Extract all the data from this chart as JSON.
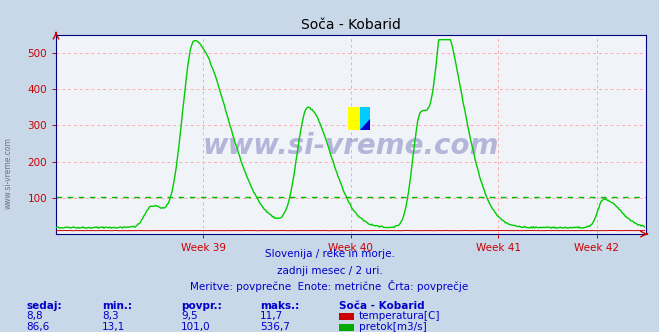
{
  "title": "Soča - Kobarid",
  "bg_color": "#c8d8e8",
  "plot_bg_color": "#f0f4f8",
  "grid_color": "#ffaaaa",
  "avg_line_color": "#00bb00",
  "avg_line_value": 101.0,
  "ylim": [
    0,
    550
  ],
  "yticks": [
    100,
    200,
    300,
    400,
    500
  ],
  "xlabel_weeks": [
    "Week 39",
    "Week 40",
    "Week 41",
    "Week 42"
  ],
  "watermark_text": "www.si-vreme.com",
  "subtitle_lines": [
    "Slovenija / reke in morje.",
    "zadnji mesec / 2 uri.",
    "Meritve: povprečne  Enote: metrične  Črta: povprečje"
  ],
  "table_headers": [
    "sedaj:",
    "min.:",
    "povpr.:",
    "maks.:"
  ],
  "table_station": "Soča - Kobarid",
  "table_rows": [
    {
      "sedaj": "8,8",
      "min": "8,3",
      "povpr": "9,5",
      "maks": "11,7",
      "label": "temperatura[C]",
      "color": "#cc0000"
    },
    {
      "sedaj": "86,6",
      "min": "13,1",
      "povpr": "101,0",
      "maks": "536,7",
      "label": "pretok[m3/s]",
      "color": "#00aa00"
    }
  ],
  "temp_color": "#cc0000",
  "flow_color": "#00cc00",
  "axis_color": "#000080",
  "spine_color": "#000080",
  "text_color": "#0000cc",
  "watermark_color": "#000080",
  "label_color": "#cc0000",
  "n_points": 504
}
